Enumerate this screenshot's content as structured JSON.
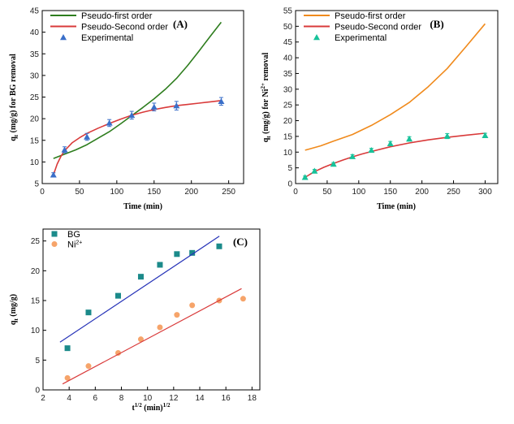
{
  "chart_data": [
    {
      "id": "A",
      "type": "line",
      "panel_label": "(A)",
      "xlabel": "Time (min)",
      "ylabel": "qt (mg/g) for BG removal",
      "ylabel_main": "q",
      "ylabel_sub": "t",
      "ylabel_rest": " (mg/g) for BG removal",
      "xlim": [
        0,
        270
      ],
      "ylim": [
        5,
        45
      ],
      "xticks": [
        0,
        50,
        100,
        150,
        200,
        250
      ],
      "yticks": [
        5,
        10,
        15,
        20,
        25,
        30,
        35,
        40,
        45
      ],
      "legend_position": "top-left",
      "series": [
        {
          "name": "Pseudo-first order",
          "kind": "line",
          "color": "#2e7d1e",
          "x": [
            15,
            30,
            45,
            60,
            75,
            90,
            105,
            120,
            135,
            150,
            165,
            180,
            195,
            210,
            225,
            240
          ],
          "y": [
            10.8,
            11.8,
            12.8,
            14.0,
            15.5,
            17.0,
            18.8,
            20.7,
            22.6,
            24.6,
            26.8,
            29.3,
            32.3,
            35.6,
            39.0,
            42.3
          ]
        },
        {
          "name": "Pseudo-Second order",
          "kind": "line",
          "color": "#d93a3a",
          "x": [
            15,
            20,
            25,
            30,
            40,
            50,
            60,
            75,
            90,
            105,
            120,
            135,
            150,
            165,
            180,
            195,
            210,
            225,
            240
          ],
          "y": [
            7.0,
            9.5,
            11.3,
            12.6,
            14.4,
            15.6,
            16.6,
            17.8,
            18.9,
            19.9,
            20.8,
            21.5,
            22.1,
            22.6,
            23.0,
            23.3,
            23.6,
            23.9,
            24.2
          ]
        },
        {
          "name": "Experimental",
          "kind": "marker",
          "marker": "triangle",
          "color": "#3a6fc9",
          "x": [
            15,
            30,
            60,
            90,
            120,
            150,
            180,
            240
          ],
          "y": [
            7.0,
            12.8,
            15.8,
            19.0,
            20.8,
            22.7,
            23.0,
            24.0
          ],
          "err": [
            0.5,
            0.7,
            0.8,
            0.8,
            0.9,
            0.9,
            1.0,
            0.9
          ]
        }
      ]
    },
    {
      "id": "B",
      "type": "line",
      "panel_label": "(B)",
      "xlabel": "Time (min)",
      "ylabel": "qt (mg/g) for Ni2+ removal",
      "ylabel_main": "q",
      "ylabel_sub": "t",
      "ylabel_rest": " (mg/g) for Ni",
      "ylabel_sup": "2+",
      "ylabel_end": " removal",
      "xlim": [
        0,
        320
      ],
      "ylim": [
        0,
        55
      ],
      "xticks": [
        0,
        50,
        100,
        150,
        200,
        250,
        300
      ],
      "yticks": [
        0,
        5,
        10,
        15,
        20,
        25,
        30,
        35,
        40,
        45,
        50,
        55
      ],
      "legend_position": "top-left",
      "series": [
        {
          "name": "Pseudo-first order",
          "kind": "line",
          "color": "#f08a1c",
          "x": [
            15,
            40,
            60,
            90,
            120,
            150,
            180,
            210,
            240,
            270,
            300
          ],
          "y": [
            10.6,
            12.0,
            13.5,
            15.6,
            18.5,
            21.9,
            25.8,
            30.8,
            36.6,
            43.6,
            50.8
          ]
        },
        {
          "name": "Pseudo-Second order",
          "kind": "line",
          "color": "#d93a3a",
          "x": [
            15,
            30,
            45,
            60,
            75,
            90,
            105,
            120,
            150,
            180,
            210,
            240,
            270,
            300
          ],
          "y": [
            2.0,
            3.8,
            5.2,
            6.4,
            7.5,
            8.5,
            9.4,
            10.2,
            11.7,
            12.9,
            13.9,
            14.7,
            15.4,
            16.0
          ]
        },
        {
          "name": "Experimental",
          "kind": "marker",
          "marker": "triangle",
          "color": "#17c29a",
          "x": [
            15,
            30,
            60,
            90,
            120,
            150,
            180,
            240,
            300
          ],
          "y": [
            2.0,
            4.0,
            6.2,
            8.6,
            10.6,
            12.7,
            14.2,
            15.1,
            15.3
          ],
          "err": [
            0.4,
            0.5,
            0.5,
            0.6,
            0.6,
            0.7,
            0.7,
            0.8,
            0.7
          ]
        }
      ]
    },
    {
      "id": "C",
      "type": "scatter",
      "panel_label": "(C)",
      "xlabel": "t1/2 (min)1/2",
      "xlabel_main": "t",
      "xlabel_sup": "1/2",
      "xlabel_rest": " (min)",
      "xlabel_sup2": "1/2",
      "ylabel": "qt (mg/g)",
      "ylabel_main": "q",
      "ylabel_sub": "t",
      "ylabel_rest": " (mg/g)",
      "xlim": [
        2,
        18.6
      ],
      "ylim": [
        0,
        27
      ],
      "xticks": [
        2,
        4,
        6,
        8,
        10,
        12,
        14,
        16,
        18
      ],
      "yticks": [
        0,
        5,
        10,
        15,
        20,
        25
      ],
      "legend_position": "top-left",
      "series": [
        {
          "name": "BG",
          "kind": "marker",
          "marker": "square",
          "color": "#1b8a8a",
          "x": [
            3.87,
            5.48,
            7.75,
            9.49,
            10.95,
            12.25,
            13.42,
            15.49
          ],
          "y": [
            7.0,
            13.0,
            15.8,
            19.0,
            21.0,
            22.8,
            23.0,
            24.1
          ]
        },
        {
          "name": "BG fit",
          "kind": "fit",
          "color": "#2633b8",
          "x": [
            3.3,
            15.5
          ],
          "y": [
            8.0,
            25.8
          ]
        },
        {
          "name": "Ni2+",
          "name_main": "Ni",
          "name_sup": "2+",
          "kind": "marker",
          "marker": "circle",
          "color": "#f6a46a",
          "x": [
            3.87,
            5.48,
            7.75,
            9.49,
            10.95,
            12.25,
            13.42,
            15.49,
            17.32
          ],
          "y": [
            2.0,
            4.0,
            6.2,
            8.5,
            10.5,
            12.6,
            14.2,
            15.0,
            15.3
          ]
        },
        {
          "name": "Ni fit",
          "kind": "fit",
          "color": "#d93a3a",
          "x": [
            3.5,
            17.2
          ],
          "y": [
            1.0,
            17.0
          ]
        }
      ]
    }
  ]
}
